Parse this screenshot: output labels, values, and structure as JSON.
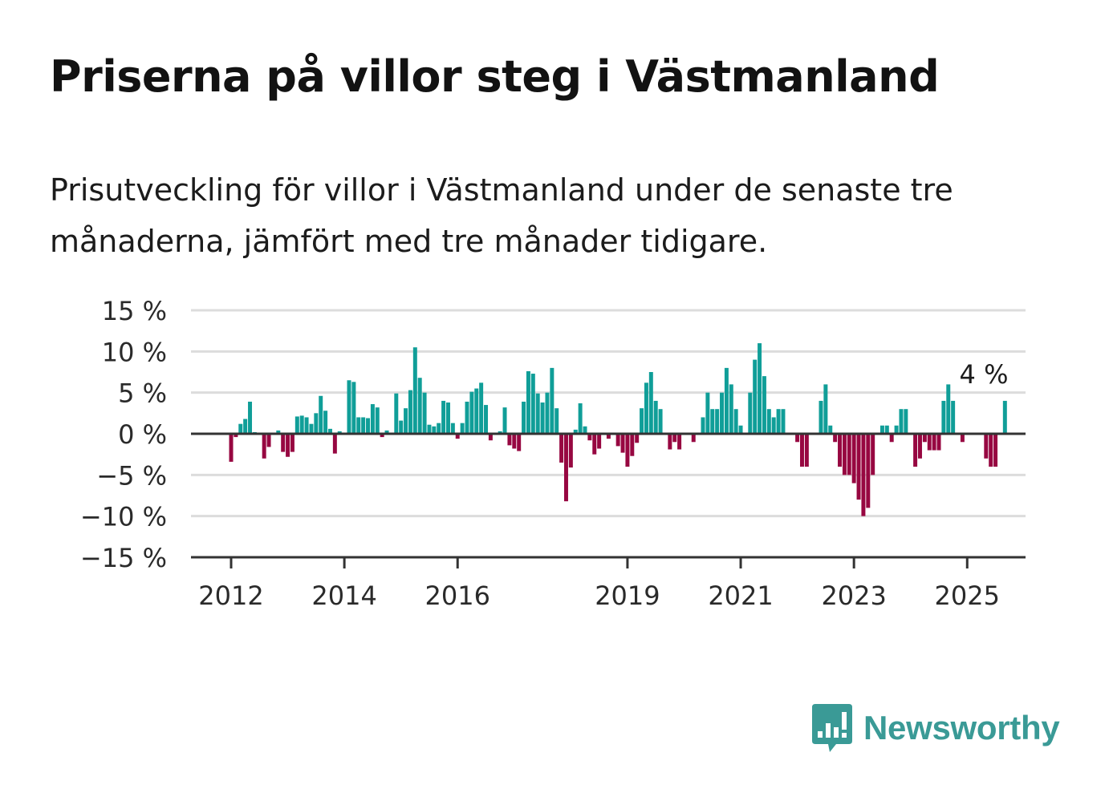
{
  "title": "Priserna på villor steg i Västmanland",
  "subtitle": "Prisutveckling för villor i Västmanland under de senaste tre månaderna, jämfört med tre månader tidigare.",
  "brand": {
    "name": "Newsworthy",
    "color": "#3a9a96",
    "icon": "newsworthy-chart-bubble-icon"
  },
  "colors": {
    "positive": "#109e98",
    "negative": "#970741",
    "grid": "#dcdcdc",
    "axis": "#333333"
  },
  "chart_data": {
    "type": "bar",
    "x_start": "2011-10",
    "frequency": "monthly",
    "ylim": [
      -15,
      15
    ],
    "y_ticks": [
      15,
      10,
      5,
      0,
      -5,
      -10,
      -15
    ],
    "y_tick_labels": [
      "15 %",
      "10 %",
      "5 %",
      "0 %",
      "−5 %",
      "−10 %",
      "−15 %"
    ],
    "x_ticks": [
      "2012",
      "2014",
      "2016",
      "2019",
      "2021",
      "2023",
      "2025"
    ],
    "last_value_label": "4 %",
    "grid": true,
    "values": [
      0,
      0,
      0,
      -3.4,
      -0.4,
      1.2,
      1.8,
      3.9,
      0.2,
      0,
      -3.0,
      -1.6,
      0,
      0.4,
      -2.2,
      -2.8,
      -2.2,
      2.1,
      2.2,
      2.0,
      1.2,
      2.5,
      4.6,
      2.8,
      0.6,
      -2.4,
      0.3,
      0,
      6.5,
      6.3,
      2.0,
      2.0,
      1.9,
      3.6,
      3.2,
      -0.4,
      0.4,
      0,
      4.9,
      1.6,
      3.1,
      5.3,
      10.5,
      6.8,
      5.0,
      1.1,
      0.9,
      1.3,
      4.0,
      3.8,
      1.3,
      -0.6,
      1.3,
      3.9,
      5.1,
      5.5,
      6.2,
      3.5,
      -0.8,
      0,
      0.3,
      3.2,
      -1.4,
      -1.8,
      -2.1,
      3.9,
      7.6,
      7.3,
      4.9,
      3.8,
      5.0,
      8.0,
      3.1,
      -3.5,
      -8.2,
      -4.1,
      0.5,
      3.7,
      0.9,
      -0.8,
      -2.5,
      -1.8,
      0,
      -0.6,
      0,
      -1.5,
      -2.3,
      -4.0,
      -2.7,
      -1.1,
      3.1,
      6.2,
      7.5,
      4.0,
      3.0,
      0,
      -1.9,
      -1.0,
      -1.9,
      0,
      0,
      -1.0,
      0,
      2.0,
      5.0,
      3.0,
      3.0,
      5.0,
      8.0,
      6.0,
      3.0,
      1.0,
      0,
      5.0,
      9.0,
      11.0,
      7.0,
      3.0,
      2.0,
      3.0,
      3.0,
      0,
      0,
      -1.0,
      -4.0,
      -4.0,
      0,
      0,
      4.0,
      6.0,
      1.0,
      -1.0,
      -4.0,
      -5.0,
      -5.0,
      -6.0,
      -8.0,
      -10.0,
      -9.0,
      -5.0,
      0,
      1.0,
      1.0,
      -1.0,
      1.0,
      3.0,
      3.0,
      0,
      -4.0,
      -3.0,
      -1.0,
      -2.0,
      -2.0,
      -2.0,
      4.0,
      6.0,
      4.0,
      0,
      -1.0,
      0,
      0,
      0,
      0,
      -3.0,
      -4.0,
      -4.0,
      0,
      4.0
    ]
  }
}
